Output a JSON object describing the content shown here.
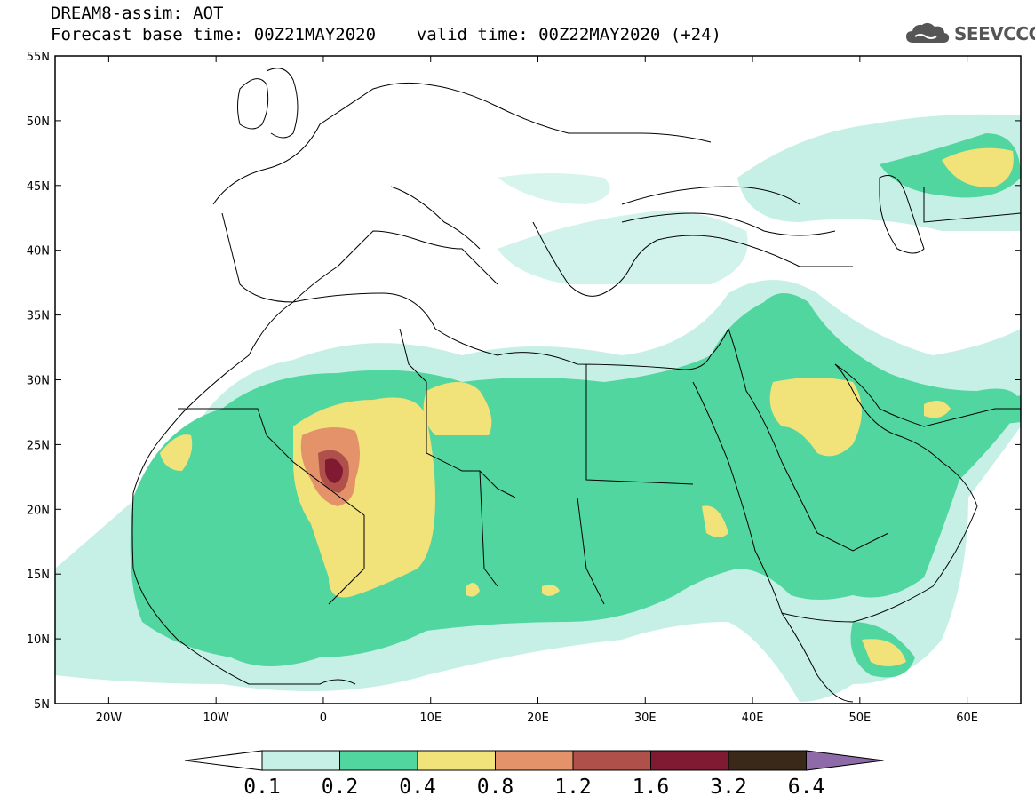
{
  "header": {
    "title_line1": "DREAM8-assim: AOT",
    "title_line2": "Forecast base time: 00Z21MAY2020    valid time: 00Z22MAY2020 (+24)",
    "logo_text": "SEEVCCC"
  },
  "map": {
    "region": "North Africa, Middle East, Europe",
    "lon_range": [
      -25,
      65
    ],
    "lat_range": [
      5,
      55
    ],
    "lat_ticks": [
      "55N",
      "50N",
      "45N",
      "40N",
      "35N",
      "30N",
      "25N",
      "20N",
      "15N",
      "10N",
      "5N"
    ],
    "lon_ticks": [
      "20W",
      "10W",
      "0",
      "10E",
      "20E",
      "30E",
      "40E",
      "50E",
      "60E"
    ]
  },
  "legend": {
    "levels": [
      "0.1",
      "0.2",
      "0.4",
      "0.8",
      "1.2",
      "1.6",
      "3.2",
      "6.4"
    ],
    "colors": [
      "#c6f0e6",
      "#52d6a0",
      "#f2e27a",
      "#e4926a",
      "#b0504a",
      "#801a32",
      "#3a2818",
      "#8e6aa8"
    ]
  }
}
